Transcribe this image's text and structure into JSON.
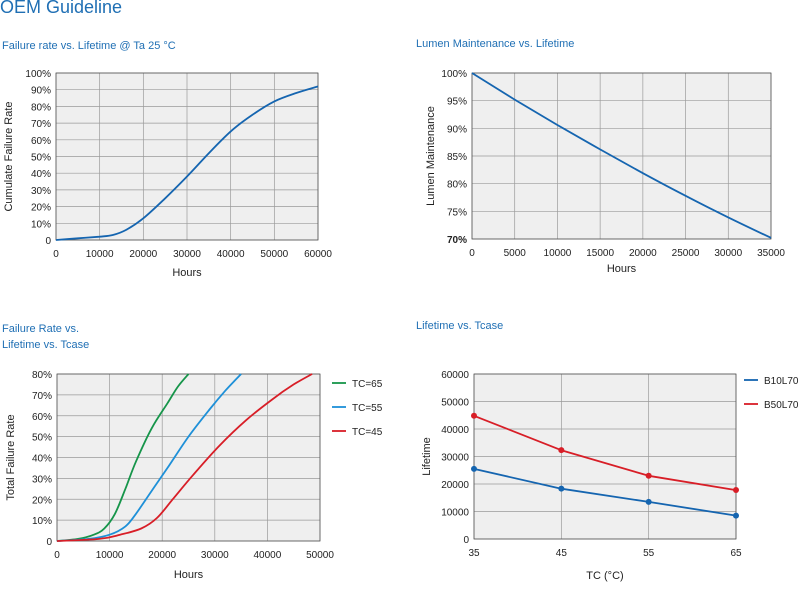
{
  "page": {
    "title": "OEM Guideline"
  },
  "colors": {
    "blue": "#1565b0",
    "green": "#16954a",
    "cyan": "#1e90d8",
    "red": "#d81e27",
    "plot_bg": "#efefef",
    "grid": "#9a9a9a"
  },
  "chart_data": [
    {
      "type": "line",
      "title": "Failure rate vs. Lifetime @ Ta 25 °C",
      "xlabel": "Hours",
      "ylabel": "Cumulate Failure Rate",
      "xlim": [
        0,
        60000
      ],
      "ylim": [
        0,
        100
      ],
      "xticks": [
        "0",
        "10000",
        "20000",
        "30000",
        "40000",
        "50000",
        "60000"
      ],
      "yticks": [
        "0",
        "10%",
        "20%",
        "30%",
        "40%",
        "50%",
        "60%",
        "70%",
        "80%",
        "90%",
        "100%"
      ],
      "grid": true,
      "series": [
        {
          "color": "#1565b0",
          "x": [
            0,
            5000,
            10000,
            13000,
            16000,
            20000,
            25000,
            30000,
            35000,
            40000,
            45000,
            50000,
            55000,
            60000
          ],
          "y": [
            0,
            1,
            2,
            3,
            6,
            13,
            25,
            38,
            52,
            65,
            75,
            83,
            88,
            92
          ]
        }
      ]
    },
    {
      "type": "line",
      "title": "Lumen Maintenance vs. Lifetime",
      "xlabel": "Hours",
      "ylabel": "Lumen Maintenance",
      "xlim": [
        0,
        35000
      ],
      "ylim": [
        70,
        100
      ],
      "xticks": [
        "0",
        "5000",
        "10000",
        "15000",
        "20000",
        "25000",
        "30000",
        "35000"
      ],
      "yticks": [
        "70%",
        "75%",
        "80%",
        "85%",
        "90%",
        "95%",
        "100%"
      ],
      "grid": true,
      "series": [
        {
          "color": "#1565b0",
          "x": [
            0,
            5000,
            10000,
            15000,
            20000,
            25000,
            30000,
            35000
          ],
          "y": [
            100,
            95.2,
            90.6,
            86.2,
            81.9,
            77.8,
            73.9,
            70.2
          ]
        }
      ]
    },
    {
      "type": "line",
      "title": "Failure Rate vs.",
      "title2": "Lifetime vs. Tcase",
      "xlabel": "Hours",
      "ylabel": "Total Failure Rate",
      "xlim": [
        0,
        50000
      ],
      "ylim": [
        0,
        80
      ],
      "xticks": [
        "0",
        "10000",
        "20000",
        "30000",
        "40000",
        "50000"
      ],
      "yticks": [
        "0",
        "10%",
        "20%",
        "30%",
        "40%",
        "50%",
        "60%",
        "70%",
        "80%"
      ],
      "grid": true,
      "legend": "right",
      "series": [
        {
          "name": "TC=65",
          "color": "#16954a",
          "x": [
            0,
            4000,
            7000,
            9000,
            11000,
            13000,
            15000,
            18000,
            21000,
            23000,
            25000
          ],
          "y": [
            0,
            1,
            3,
            6,
            13,
            25,
            38,
            54,
            66,
            74,
            80
          ]
        },
        {
          "name": "TC=55",
          "color": "#1e90d8",
          "x": [
            0,
            6000,
            10000,
            13000,
            15000,
            18000,
            21000,
            25000,
            29000,
            32000,
            35000
          ],
          "y": [
            0,
            1,
            3,
            7,
            13,
            24,
            35,
            50,
            63,
            72,
            80
          ]
        },
        {
          "name": "TC=45",
          "color": "#d81e27",
          "x": [
            0,
            8000,
            12000,
            16000,
            19000,
            22000,
            26000,
            31000,
            36000,
            41000,
            45000,
            48500
          ],
          "y": [
            0,
            1,
            3,
            6,
            11,
            20,
            32,
            46,
            58,
            68,
            75,
            80
          ]
        }
      ]
    },
    {
      "type": "line",
      "title": "Lifetime vs. Tcase",
      "xlabel": "TC (°C)",
      "ylabel": "Lifetime",
      "xlim": [
        35,
        65
      ],
      "ylim": [
        0,
        60000
      ],
      "xticks": [
        "35",
        "45",
        "55",
        "65"
      ],
      "yticks": [
        "0",
        "10000",
        "20000",
        "30000",
        "40000",
        "50000",
        "60000"
      ],
      "grid": true,
      "legend": "right",
      "series": [
        {
          "name": "B10L70",
          "color": "#1565b0",
          "x": [
            35,
            45,
            55,
            65
          ],
          "y": [
            25500,
            18300,
            13500,
            8500
          ]
        },
        {
          "name": "B50L70",
          "color": "#d81e27",
          "x": [
            35,
            45,
            55,
            65
          ],
          "y": [
            44800,
            32300,
            23000,
            17800
          ]
        }
      ]
    }
  ]
}
